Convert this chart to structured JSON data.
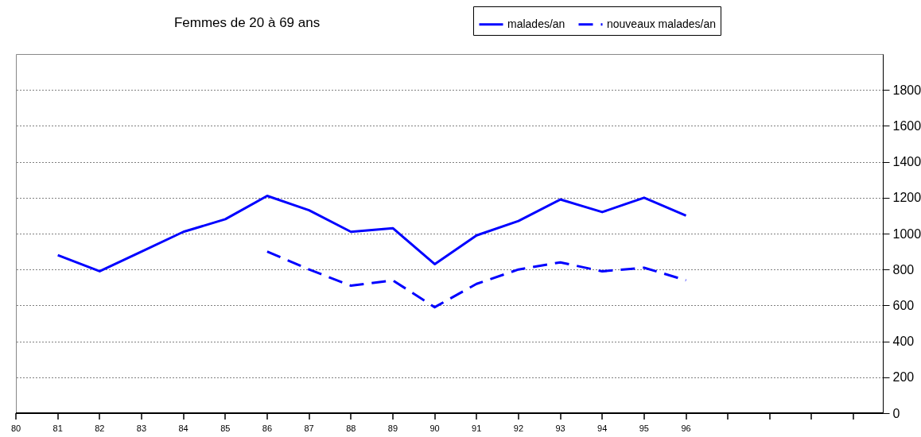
{
  "chart_data": {
    "type": "line",
    "title": "Femmes de 20 à 69 ans",
    "x": [
      81,
      82,
      83,
      84,
      85,
      86,
      87,
      88,
      89,
      90,
      91,
      92,
      93,
      94,
      95,
      96
    ],
    "series": [
      {
        "name": "malades/an",
        "color": "#0000ff",
        "line_style": "solid",
        "values": [
          880,
          790,
          900,
          1010,
          1080,
          1210,
          1130,
          1010,
          1030,
          830,
          990,
          1070,
          1190,
          1120,
          1200,
          1100
        ]
      },
      {
        "name": "nouveaux malades/an",
        "color": "#0000ff",
        "line_style": "dashed",
        "values": [
          null,
          null,
          null,
          null,
          null,
          900,
          800,
          710,
          740,
          590,
          720,
          800,
          840,
          790,
          810,
          740
        ]
      }
    ],
    "xlim": [
      80,
      100.7
    ],
    "xticks": [
      80,
      81,
      82,
      83,
      84,
      85,
      86,
      87,
      88,
      89,
      90,
      91,
      92,
      93,
      94,
      95,
      96,
      {
        "value": 97,
        "label": null
      },
      {
        "value": 98,
        "label": null
      },
      {
        "value": 99,
        "label": null
      },
      {
        "value": 100,
        "label": null
      }
    ],
    "ylim": [
      0,
      2000
    ],
    "yticks": [
      0,
      200,
      400,
      600,
      800,
      1000,
      1200,
      1400,
      1600,
      1800
    ],
    "grid": "y",
    "legend": "top right",
    "marker": "none"
  }
}
